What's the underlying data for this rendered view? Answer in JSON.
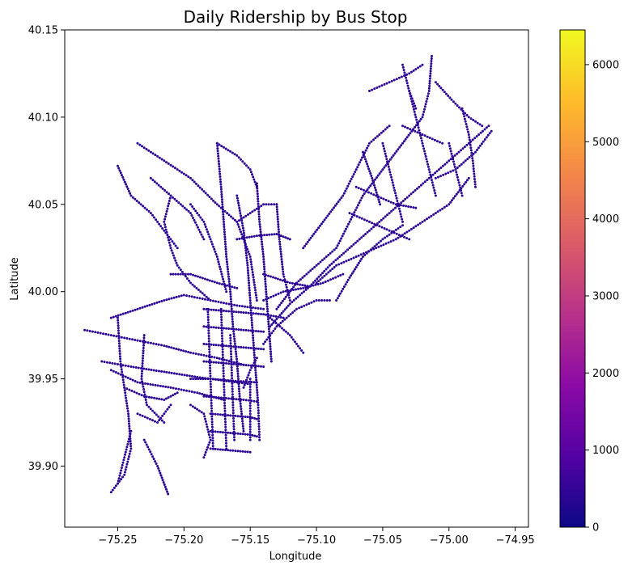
{
  "chart_data": {
    "type": "scatter",
    "title": "Daily Ridership by Bus Stop",
    "xlabel": "Longitude",
    "ylabel": "Latitude",
    "xlim": [
      -75.29,
      -74.94
    ],
    "ylim": [
      39.865,
      40.15
    ],
    "x_ticks": [
      -75.25,
      -75.2,
      -75.15,
      -75.1,
      -75.05,
      -75.0,
      -74.95
    ],
    "x_tick_labels": [
      "−75.25",
      "−75.20",
      "−75.15",
      "−75.10",
      "−75.05",
      "−75.00",
      "−74.95"
    ],
    "y_ticks": [
      39.9,
      39.95,
      40.0,
      40.05,
      40.1,
      40.15
    ],
    "y_tick_labels": [
      "39.90",
      "39.95",
      "40.00",
      "40.05",
      "40.10",
      "40.15"
    ],
    "grid": false,
    "colormap": "plasma",
    "colorbar": {
      "min": 0,
      "max": 6450,
      "ticks": [
        0,
        1000,
        2000,
        3000,
        4000,
        5000,
        6000
      ],
      "tick_labels": [
        "0",
        "1000",
        "2000",
        "3000",
        "4000",
        "5000",
        "6000"
      ],
      "colors": [
        "#0d0887",
        "#5302a3",
        "#8b0aa5",
        "#b83289",
        "#db5c68",
        "#f48849",
        "#febc2a",
        "#f0f921"
      ]
    },
    "marker_color_typical": "#2c0594",
    "routes": [
      [
        [
          -75.275,
          39.978
        ],
        [
          -75.255,
          39.975
        ],
        [
          -75.235,
          39.972
        ],
        [
          -75.215,
          39.969
        ],
        [
          -75.195,
          39.965
        ],
        [
          -75.175,
          39.962
        ],
        [
          -75.155,
          39.958
        ]
      ],
      [
        [
          -75.255,
          39.985
        ],
        [
          -75.235,
          39.99
        ],
        [
          -75.215,
          39.995
        ],
        [
          -75.2,
          39.998
        ],
        [
          -75.18,
          39.995
        ],
        [
          -75.16,
          39.992
        ],
        [
          -75.14,
          39.99
        ]
      ],
      [
        [
          -75.262,
          39.96
        ],
        [
          -75.24,
          39.957
        ],
        [
          -75.215,
          39.954
        ],
        [
          -75.19,
          39.951
        ],
        [
          -75.17,
          39.949
        ],
        [
          -75.15,
          39.947
        ]
      ],
      [
        [
          -75.25,
          39.985
        ],
        [
          -75.248,
          39.96
        ],
        [
          -75.245,
          39.945
        ],
        [
          -75.242,
          39.93
        ],
        [
          -75.24,
          39.91
        ],
        [
          -75.245,
          39.895
        ],
        [
          -75.255,
          39.885
        ]
      ],
      [
        [
          -75.23,
          39.975
        ],
        [
          -75.232,
          39.95
        ],
        [
          -75.228,
          39.935
        ],
        [
          -75.215,
          39.925
        ]
      ],
      [
        [
          -75.245,
          39.945
        ],
        [
          -75.23,
          39.94
        ],
        [
          -75.215,
          39.938
        ],
        [
          -75.205,
          39.942
        ]
      ],
      [
        [
          -75.24,
          39.92
        ],
        [
          -75.245,
          39.905
        ],
        [
          -75.25,
          39.89
        ]
      ],
      [
        [
          -75.23,
          39.915
        ],
        [
          -75.22,
          39.9
        ],
        [
          -75.212,
          39.884
        ]
      ],
      [
        [
          -75.235,
          39.93
        ],
        [
          -75.22,
          39.925
        ],
        [
          -75.21,
          39.935
        ]
      ],
      [
        [
          -75.255,
          39.955
        ],
        [
          -75.235,
          39.948
        ],
        [
          -75.21,
          39.945
        ],
        [
          -75.19,
          39.942
        ],
        [
          -75.17,
          39.938
        ]
      ],
      [
        [
          -75.21,
          40.055
        ],
        [
          -75.215,
          40.04
        ],
        [
          -75.21,
          40.025
        ],
        [
          -75.205,
          40.015
        ],
        [
          -75.195,
          40.005
        ],
        [
          -75.18,
          39.995
        ]
      ],
      [
        [
          -75.25,
          40.072
        ],
        [
          -75.24,
          40.055
        ],
        [
          -75.225,
          40.045
        ],
        [
          -75.215,
          40.035
        ],
        [
          -75.205,
          40.025
        ]
      ],
      [
        [
          -75.235,
          40.085
        ],
        [
          -75.215,
          40.075
        ],
        [
          -75.195,
          40.065
        ],
        [
          -75.175,
          40.05
        ],
        [
          -75.16,
          40.04
        ],
        [
          -75.15,
          40.02
        ],
        [
          -75.145,
          39.995
        ]
      ],
      [
        [
          -75.225,
          40.065
        ],
        [
          -75.21,
          40.055
        ],
        [
          -75.195,
          40.045
        ],
        [
          -75.185,
          40.03
        ]
      ],
      [
        [
          -75.21,
          40.01
        ],
        [
          -75.195,
          40.01
        ],
        [
          -75.175,
          40.005
        ],
        [
          -75.16,
          40.002
        ]
      ],
      [
        [
          -75.195,
          40.05
        ],
        [
          -75.185,
          40.04
        ],
        [
          -75.175,
          40.02
        ],
        [
          -75.168,
          40.0
        ]
      ],
      [
        [
          -75.175,
          40.085
        ],
        [
          -75.172,
          40.06
        ],
        [
          -75.17,
          40.04
        ],
        [
          -75.168,
          40.02
        ],
        [
          -75.165,
          40.0
        ],
        [
          -75.163,
          39.98
        ],
        [
          -75.16,
          39.96
        ],
        [
          -75.158,
          39.94
        ],
        [
          -75.155,
          39.92
        ]
      ],
      [
        [
          -75.175,
          40.085
        ],
        [
          -75.16,
          40.078
        ],
        [
          -75.15,
          40.07
        ],
        [
          -75.145,
          40.06
        ]
      ],
      [
        [
          -75.16,
          40.055
        ],
        [
          -75.155,
          40.035
        ],
        [
          -75.152,
          40.015
        ],
        [
          -75.15,
          39.995
        ],
        [
          -75.148,
          39.975
        ],
        [
          -75.146,
          39.955
        ],
        [
          -75.144,
          39.935
        ],
        [
          -75.143,
          39.915
        ]
      ],
      [
        [
          -75.145,
          40.062
        ],
        [
          -75.143,
          40.04
        ],
        [
          -75.14,
          40.02
        ],
        [
          -75.138,
          40.0
        ],
        [
          -75.136,
          39.98
        ],
        [
          -75.134,
          39.96
        ]
      ],
      [
        [
          -75.182,
          39.99
        ],
        [
          -75.181,
          39.97
        ],
        [
          -75.18,
          39.95
        ],
        [
          -75.179,
          39.93
        ],
        [
          -75.178,
          39.91
        ]
      ],
      [
        [
          -75.172,
          39.99
        ],
        [
          -75.171,
          39.97
        ],
        [
          -75.17,
          39.95
        ],
        [
          -75.169,
          39.93
        ],
        [
          -75.168,
          39.91
        ]
      ],
      [
        [
          -75.165,
          39.975
        ],
        [
          -75.164,
          39.955
        ],
        [
          -75.163,
          39.935
        ],
        [
          -75.162,
          39.915
        ]
      ],
      [
        [
          -75.15,
          39.95
        ],
        [
          -75.15,
          39.93
        ],
        [
          -75.15,
          39.915
        ]
      ],
      [
        [
          -75.185,
          39.99
        ],
        [
          -75.17,
          39.989
        ],
        [
          -75.155,
          39.988
        ],
        [
          -75.14,
          39.987
        ],
        [
          -75.125,
          39.985
        ]
      ],
      [
        [
          -75.185,
          39.98
        ],
        [
          -75.17,
          39.979
        ],
        [
          -75.155,
          39.978
        ],
        [
          -75.14,
          39.977
        ]
      ],
      [
        [
          -75.185,
          39.97
        ],
        [
          -75.17,
          39.969
        ],
        [
          -75.155,
          39.968
        ],
        [
          -75.14,
          39.967
        ]
      ],
      [
        [
          -75.185,
          39.96
        ],
        [
          -75.17,
          39.959
        ],
        [
          -75.155,
          39.958
        ],
        [
          -75.14,
          39.957
        ]
      ],
      [
        [
          -75.195,
          39.95
        ],
        [
          -75.18,
          39.95
        ],
        [
          -75.165,
          39.949
        ],
        [
          -75.145,
          39.948
        ]
      ],
      [
        [
          -75.185,
          39.94
        ],
        [
          -75.17,
          39.939
        ],
        [
          -75.155,
          39.938
        ],
        [
          -75.145,
          39.937
        ]
      ],
      [
        [
          -75.18,
          39.93
        ],
        [
          -75.165,
          39.929
        ],
        [
          -75.15,
          39.928
        ],
        [
          -75.145,
          39.927
        ]
      ],
      [
        [
          -75.18,
          39.92
        ],
        [
          -75.165,
          39.919
        ],
        [
          -75.15,
          39.918
        ],
        [
          -75.145,
          39.917
        ]
      ],
      [
        [
          -75.18,
          39.91
        ],
        [
          -75.165,
          39.909
        ],
        [
          -75.15,
          39.908
        ]
      ],
      [
        [
          -75.195,
          39.935
        ],
        [
          -75.185,
          39.93
        ],
        [
          -75.18,
          39.915
        ],
        [
          -75.185,
          39.905
        ]
      ],
      [
        [
          -75.16,
          40.04
        ],
        [
          -75.15,
          40.045
        ],
        [
          -75.14,
          40.05
        ],
        [
          -75.13,
          40.05
        ]
      ],
      [
        [
          -75.16,
          40.03
        ],
        [
          -75.145,
          40.032
        ],
        [
          -75.13,
          40.033
        ],
        [
          -75.12,
          40.03
        ]
      ],
      [
        [
          -75.13,
          40.05
        ],
        [
          -75.128,
          40.03
        ],
        [
          -75.125,
          40.01
        ],
        [
          -75.12,
          39.995
        ]
      ],
      [
        [
          -75.14,
          39.995
        ],
        [
          -75.125,
          40.0
        ],
        [
          -75.11,
          40.002
        ],
        [
          -75.095,
          40.005
        ],
        [
          -75.08,
          40.01
        ]
      ],
      [
        [
          -75.135,
          39.985
        ],
        [
          -75.12,
          39.975
        ],
        [
          -75.11,
          39.965
        ]
      ],
      [
        [
          -75.14,
          39.97
        ],
        [
          -75.13,
          39.98
        ],
        [
          -75.115,
          39.99
        ],
        [
          -75.1,
          39.995
        ],
        [
          -75.09,
          39.995
        ]
      ],
      [
        [
          -75.135,
          39.98
        ],
        [
          -75.12,
          39.993
        ],
        [
          -75.105,
          40.003
        ],
        [
          -75.09,
          40.015
        ],
        [
          -75.075,
          40.025
        ],
        [
          -75.06,
          40.035
        ],
        [
          -75.045,
          40.045
        ],
        [
          -75.03,
          40.055
        ],
        [
          -75.015,
          40.065
        ],
        [
          -75.0,
          40.075
        ],
        [
          -74.985,
          40.085
        ],
        [
          -74.97,
          40.095
        ]
      ],
      [
        [
          -75.13,
          39.99
        ],
        [
          -75.115,
          40.005
        ],
        [
          -75.1,
          40.015
        ],
        [
          -75.085,
          40.025
        ],
        [
          -75.075,
          40.04
        ],
        [
          -75.065,
          40.055
        ],
        [
          -75.05,
          40.07
        ],
        [
          -75.035,
          40.085
        ],
        [
          -75.02,
          40.1
        ],
        [
          -75.015,
          40.115
        ],
        [
          -75.013,
          40.135
        ]
      ],
      [
        [
          -75.11,
          40.025
        ],
        [
          -75.095,
          40.04
        ],
        [
          -75.08,
          40.055
        ],
        [
          -75.07,
          40.07
        ],
        [
          -75.06,
          40.085
        ],
        [
          -75.045,
          40.095
        ]
      ],
      [
        [
          -75.1,
          40.005
        ],
        [
          -75.085,
          40.015
        ],
        [
          -75.07,
          40.02
        ],
        [
          -75.055,
          40.025
        ],
        [
          -75.04,
          40.03
        ],
        [
          -75.02,
          40.04
        ],
        [
          -75.0,
          40.05
        ],
        [
          -74.985,
          40.065
        ]
      ],
      [
        [
          -75.085,
          39.995
        ],
        [
          -75.075,
          40.008
        ],
        [
          -75.065,
          40.02
        ],
        [
          -75.05,
          40.03
        ],
        [
          -75.035,
          40.038
        ]
      ],
      [
        [
          -75.075,
          40.045
        ],
        [
          -75.06,
          40.04
        ],
        [
          -75.045,
          40.035
        ],
        [
          -75.03,
          40.03
        ]
      ],
      [
        [
          -75.07,
          40.06
        ],
        [
          -75.055,
          40.055
        ],
        [
          -75.04,
          40.05
        ],
        [
          -75.025,
          40.048
        ]
      ],
      [
        [
          -75.05,
          40.085
        ],
        [
          -75.045,
          40.07
        ],
        [
          -75.04,
          40.055
        ],
        [
          -75.035,
          40.04
        ]
      ],
      [
        [
          -75.03,
          40.115
        ],
        [
          -75.025,
          40.1
        ],
        [
          -75.02,
          40.085
        ],
        [
          -75.015,
          40.07
        ],
        [
          -75.01,
          40.055
        ]
      ],
      [
        [
          -75.035,
          40.13
        ],
        [
          -75.03,
          40.115
        ],
        [
          -75.025,
          40.105
        ]
      ],
      [
        [
          -75.06,
          40.115
        ],
        [
          -75.045,
          40.12
        ],
        [
          -75.03,
          40.125
        ],
        [
          -75.02,
          40.13
        ]
      ],
      [
        [
          -75.01,
          40.12
        ],
        [
          -74.998,
          40.11
        ],
        [
          -74.985,
          40.1
        ],
        [
          -74.975,
          40.095
        ]
      ],
      [
        [
          -74.99,
          40.105
        ],
        [
          -74.985,
          40.09
        ],
        [
          -74.982,
          40.075
        ],
        [
          -74.98,
          40.06
        ]
      ],
      [
        [
          -75.01,
          40.065
        ],
        [
          -74.995,
          40.07
        ],
        [
          -74.98,
          40.08
        ],
        [
          -74.968,
          40.092
        ]
      ],
      [
        [
          -75.0,
          40.085
        ],
        [
          -74.995,
          40.07
        ],
        [
          -74.99,
          40.055
        ]
      ],
      [
        [
          -75.035,
          40.095
        ],
        [
          -75.02,
          40.09
        ],
        [
          -75.005,
          40.085
        ]
      ],
      [
        [
          -75.065,
          40.08
        ],
        [
          -75.058,
          40.065
        ],
        [
          -75.052,
          40.05
        ]
      ],
      [
        [
          -75.14,
          40.01
        ],
        [
          -75.12,
          40.005
        ],
        [
          -75.105,
          40.003
        ]
      ],
      [
        [
          -75.155,
          39.945
        ],
        [
          -75.15,
          39.955
        ],
        [
          -75.145,
          39.962
        ]
      ]
    ]
  }
}
